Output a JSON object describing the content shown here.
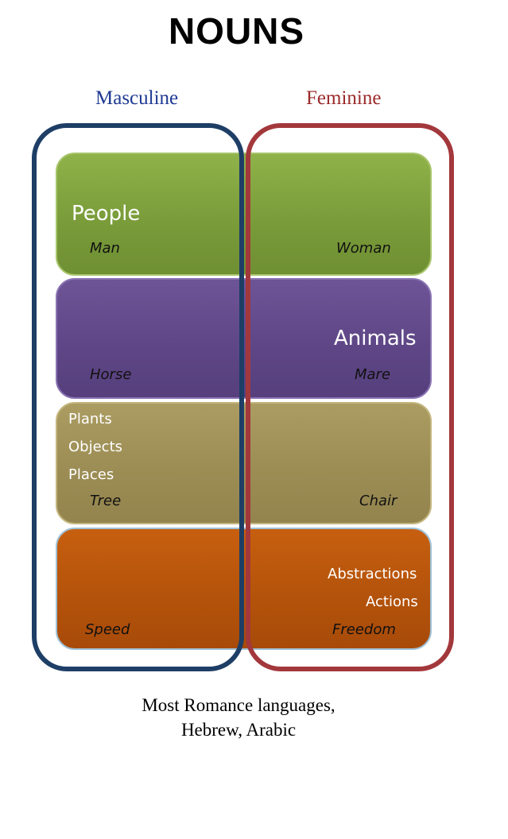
{
  "title": "NOUNS",
  "columns": {
    "masculine": {
      "label": "Masculine",
      "color": "#1f3a93"
    },
    "feminine": {
      "label": "Feminine",
      "color": "#9b2b2b"
    }
  },
  "bands": {
    "people": {
      "category": "People",
      "masculine_example": "Man",
      "feminine_example": "Woman",
      "color": "#7a9c3a"
    },
    "animals": {
      "category": "Animals",
      "masculine_example": "Horse",
      "feminine_example": "Mare",
      "color": "#5f4787"
    },
    "plants": {
      "categories": [
        "Plants",
        "Objects",
        "Places"
      ],
      "masculine_example": "Tree",
      "feminine_example": "Chair",
      "color": "#9c8d55"
    },
    "abstractions": {
      "categories": [
        "Abstractions",
        "Actions"
      ],
      "masculine_example": "Speed",
      "feminine_example": "Freedom",
      "color": "#b4530b"
    }
  },
  "caption": {
    "line1": "Most Romance languages,",
    "line2": "Hebrew, Arabic"
  }
}
